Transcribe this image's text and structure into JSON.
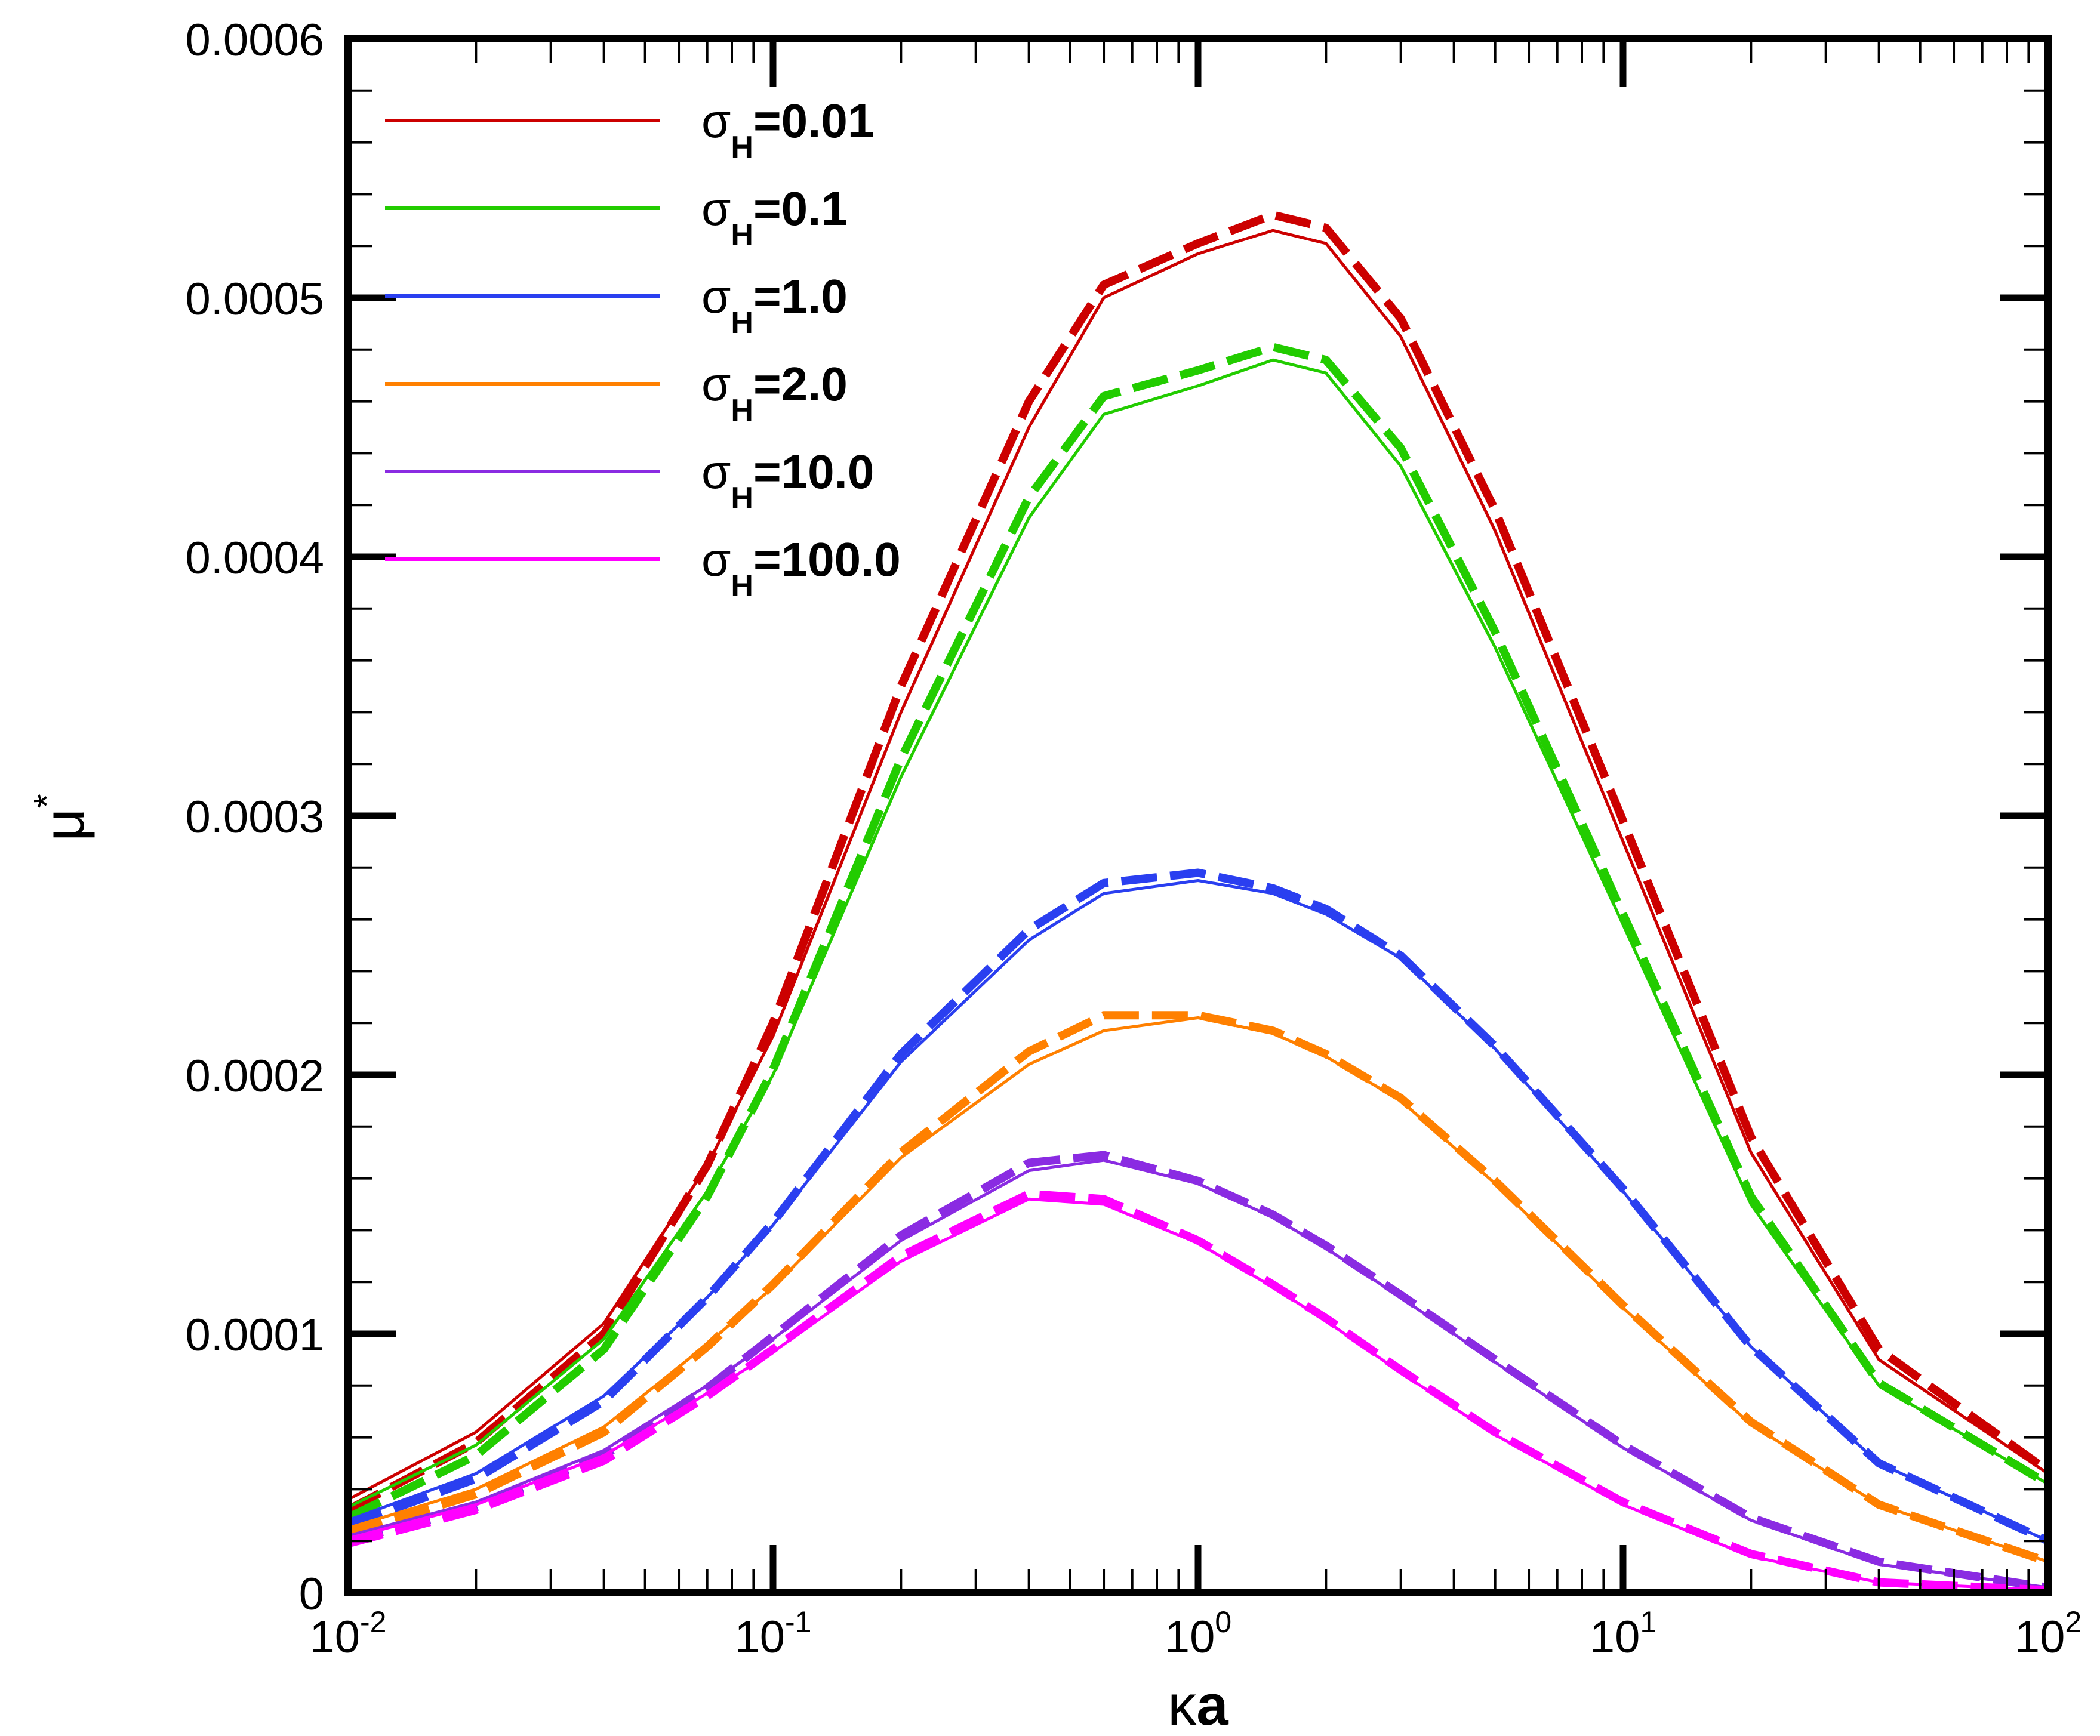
{
  "chart_data": {
    "type": "line",
    "title": "",
    "xlabel": {
      "greek": "κ",
      "text": "a"
    },
    "ylabel": {
      "greek": "μ",
      "sup": "*"
    },
    "xscale": "log",
    "xlim": [
      0.01,
      100
    ],
    "ylim": [
      0,
      0.0006
    ],
    "x_ticks": [
      {
        "value": 0.01,
        "base": "10",
        "exp": "-2"
      },
      {
        "value": 0.1,
        "base": "10",
        "exp": "-1"
      },
      {
        "value": 1,
        "base": "10",
        "exp": "0"
      },
      {
        "value": 10,
        "base": "10",
        "exp": "1"
      },
      {
        "value": 100,
        "base": "10",
        "exp": "2"
      }
    ],
    "y_ticks": [
      {
        "value": 0,
        "label": "0"
      },
      {
        "value": 0.0001,
        "label": "0.0001"
      },
      {
        "value": 0.0002,
        "label": "0.0002"
      },
      {
        "value": 0.0003,
        "label": "0.0003"
      },
      {
        "value": 0.0004,
        "label": "0.0004"
      },
      {
        "value": 0.0005,
        "label": "0.0005"
      },
      {
        "value": 0.0006,
        "label": "0.0006"
      }
    ],
    "legend_position": "top-left",
    "line_styles": {
      "solid": "solid line",
      "dashed": "dashed line"
    },
    "x": [
      0.01,
      0.02,
      0.04,
      0.07,
      0.1,
      0.2,
      0.4,
      0.6,
      1,
      1.5,
      2,
      3,
      5,
      10,
      20,
      40,
      100
    ],
    "series": [
      {
        "greek": "σ",
        "sub": "H",
        "value_text": "=0.01",
        "color": "#cc0000",
        "solid": [
          3.6e-05,
          6.2e-05,
          0.000104,
          0.000165,
          0.000215,
          0.00034,
          0.00045,
          0.0005,
          0.000517,
          0.000526,
          0.000521,
          0.000485,
          0.00041,
          0.00029,
          0.00017,
          9e-05,
          4.6e-05
        ],
        "dashed": [
          3.2e-05,
          5.8e-05,
          0.0001,
          0.000165,
          0.00022,
          0.00035,
          0.00046,
          0.000505,
          0.000521,
          0.000532,
          0.000527,
          0.000492,
          0.000418,
          0.000298,
          0.000176,
          9.4e-05,
          4.7e-05
        ]
      },
      {
        "greek": "σ",
        "sub": "H",
        "value_text": "=0.1",
        "color": "#22cc00",
        "solid": [
          3.3e-05,
          5.7e-05,
          9.8e-05,
          0.000155,
          0.0002,
          0.000315,
          0.000415,
          0.000455,
          0.000466,
          0.000476,
          0.000471,
          0.000435,
          0.000365,
          0.000258,
          0.00015,
          8e-05,
          4.2e-05
        ],
        "dashed": [
          2.9e-05,
          5.3e-05,
          9.4e-05,
          0.000153,
          0.000202,
          0.000322,
          0.000423,
          0.000462,
          0.000472,
          0.000481,
          0.000476,
          0.000442,
          0.000371,
          0.000262,
          0.000153,
          8.1e-05,
          4.2e-05
        ]
      },
      {
        "greek": "σ",
        "sub": "H",
        "value_text": "=1.0",
        "color": "#2a3ff0",
        "solid": [
          2.8e-05,
          4.6e-05,
          7.6e-05,
          0.000114,
          0.000142,
          0.000205,
          0.000252,
          0.00027,
          0.000275,
          0.00027,
          0.000262,
          0.000245,
          0.00021,
          0.000155,
          9.5e-05,
          5e-05,
          2e-05
        ],
        "dashed": [
          2.6e-05,
          4.4e-05,
          7.4e-05,
          0.000114,
          0.000143,
          0.000208,
          0.000256,
          0.000274,
          0.000278,
          0.000272,
          0.000264,
          0.000246,
          0.000211,
          0.000156,
          9.5e-05,
          5e-05,
          2e-05
        ]
      },
      {
        "greek": "σ",
        "sub": "H",
        "value_text": "=2.0",
        "color": "#ff8000",
        "solid": [
          2.5e-05,
          4e-05,
          6.4e-05,
          9.6e-05,
          0.000118,
          0.000168,
          0.000204,
          0.000217,
          0.000222,
          0.000216,
          0.000207,
          0.00019,
          0.000158,
          0.00011,
          6.5e-05,
          3.4e-05,
          1.2e-05
        ],
        "dashed": [
          2.3e-05,
          3.8e-05,
          6.2e-05,
          9.5e-05,
          0.000119,
          0.00017,
          0.000209,
          0.000223,
          0.000223,
          0.000217,
          0.000208,
          0.000191,
          0.000159,
          0.000111,
          6.6e-05,
          3.4e-05,
          1.2e-05
        ]
      },
      {
        "greek": "σ",
        "sub": "H",
        "value_text": "=10.0",
        "color": "#8a2be2",
        "solid": [
          2.2e-05,
          3.5e-05,
          5.5e-05,
          8e-05,
          9.8e-05,
          0.000136,
          0.000163,
          0.000167,
          0.000158,
          0.000145,
          0.000133,
          0.000114,
          8.9e-05,
          5.6e-05,
          2.8e-05,
          1.1e-05,
          2e-06
        ],
        "dashed": [
          2e-05,
          3.3e-05,
          5.3e-05,
          7.9e-05,
          9.9e-05,
          0.000138,
          0.000166,
          0.000169,
          0.000159,
          0.000146,
          0.000134,
          0.000115,
          9e-05,
          5.7e-05,
          2.9e-05,
          1.2e-05,
          2e-06
        ]
      },
      {
        "greek": "σ",
        "sub": "H",
        "value_text": "=100.0",
        "color": "#ff00ff",
        "solid": [
          2.1e-05,
          3.4e-05,
          5.3e-05,
          7.7e-05,
          9.3e-05,
          0.000128,
          0.000152,
          0.00015,
          0.000135,
          0.000118,
          0.000105,
          8.5e-05,
          6.1e-05,
          3.4e-05,
          1.4e-05,
          4e-06,
          1e-06
        ],
        "dashed": [
          1.9e-05,
          3.2e-05,
          5.1e-05,
          7.6e-05,
          9.4e-05,
          0.00013,
          0.000154,
          0.000152,
          0.000136,
          0.000119,
          0.000106,
          8.6e-05,
          6.2e-05,
          3.5e-05,
          1.5e-05,
          4e-06,
          1e-06
        ]
      }
    ]
  }
}
